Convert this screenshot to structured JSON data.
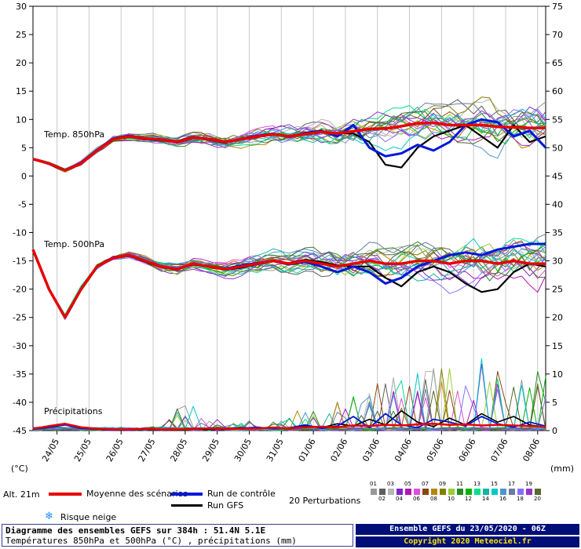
{
  "axis": {
    "left_label": "(°C)",
    "right_label": "(mm)",
    "left_ticks": [
      30,
      25,
      20,
      15,
      10,
      5,
      0,
      -5,
      -10,
      -15,
      -20,
      -25,
      -30,
      -35,
      -40,
      -45
    ],
    "right_ticks": [
      75,
      70,
      65,
      60,
      55,
      50,
      45,
      40,
      35,
      30,
      25,
      20,
      15,
      10,
      5,
      0
    ],
    "dates": [
      "24/05",
      "25/05",
      "26/05",
      "27/05",
      "28/05",
      "29/05",
      "30/05",
      "31/05",
      "01/06",
      "02/06",
      "03/06",
      "04/06",
      "05/06",
      "06/06",
      "07/06",
      "08/06"
    ]
  },
  "panel_labels": {
    "t850": "Temp. 850hPa",
    "t500": "Temp. 500hPa",
    "precip": "Précipitations"
  },
  "legend": {
    "alt": "Alt. 21m",
    "mean": "Moyenne des scénarios",
    "control": "Run de contrôle",
    "gfs": "Run GFS",
    "perturbations": "20 Perturbations",
    "snow_icon": "❄",
    "snow": "Risque neige"
  },
  "info_box": {
    "line1": "Diagramme des ensembles GEFS sur 384h : 51.4N 5.1E",
    "line2": "Températures 850hPa et 500hPa (°C) , précipitations (mm)"
  },
  "run_box": {
    "line1": "Ensemble GEFS du 23/05/2020 - 06Z",
    "line2": "Copyright 2020 Meteociel.fr"
  },
  "chart_data": {
    "type": "line",
    "x_step_hours": 12,
    "hours_total": 384,
    "ylim_c": [
      -45,
      30
    ],
    "ylim_mm": [
      0,
      75
    ],
    "grid": "vertical-daily",
    "legend_position": "below",
    "date_ticks_hours": [
      18,
      42,
      66,
      90,
      114,
      138,
      162,
      186,
      210,
      234,
      258,
      282,
      306,
      330,
      354,
      378
    ],
    "seed": 20200523,
    "colors": {
      "mean": "#e80000",
      "control": "#0018d8",
      "gfs": "#000000"
    },
    "members": [
      {
        "num": "01",
        "color": "#999999"
      },
      {
        "num": "02",
        "color": "#5e5e5e"
      },
      {
        "num": "03",
        "color": "#b5b5b5"
      },
      {
        "num": "04",
        "color": "#7d26cd"
      },
      {
        "num": "05",
        "color": "#b414b4"
      },
      {
        "num": "06",
        "color": "#dc50dc"
      },
      {
        "num": "07",
        "color": "#8b4513"
      },
      {
        "num": "08",
        "color": "#b8860b"
      },
      {
        "num": "09",
        "color": "#808000"
      },
      {
        "num": "10",
        "color": "#9acd32"
      },
      {
        "num": "11",
        "color": "#228b22"
      },
      {
        "num": "12",
        "color": "#00b400"
      },
      {
        "num": "13",
        "color": "#00e08c"
      },
      {
        "num": "14",
        "color": "#14b4a0"
      },
      {
        "num": "15",
        "color": "#00c8c8"
      },
      {
        "num": "16",
        "color": "#4f94cd"
      },
      {
        "num": "17",
        "color": "#6a7ba2"
      },
      {
        "num": "18",
        "color": "#8470ff"
      },
      {
        "num": "19",
        "color": "#9932cc"
      },
      {
        "num": "20",
        "color": "#556b2f"
      }
    ],
    "series": {
      "t850": {
        "mean": [
          3,
          2.2,
          1,
          2.2,
          4.5,
          6.5,
          7,
          6.6,
          6.4,
          6,
          6.8,
          6.5,
          6,
          6.5,
          7,
          7.4,
          7,
          7.4,
          7.8,
          7.5,
          7.9,
          8.3,
          8.4,
          8.8,
          9.3,
          9.4,
          9,
          9,
          9,
          8.7,
          8.6,
          8.5,
          8.5
        ],
        "control": [
          3,
          2.2,
          1,
          2.3,
          4.6,
          6.6,
          7.1,
          6.5,
          6.3,
          6.1,
          6.9,
          6.4,
          5.9,
          6.6,
          7.1,
          7.5,
          6.9,
          7.6,
          8,
          7,
          9,
          5,
          3.5,
          4,
          5.5,
          4.5,
          6,
          9,
          10,
          9.5,
          7,
          8,
          5
        ],
        "gfs": [
          3,
          2.1,
          0.9,
          2.2,
          4.4,
          6.4,
          7,
          6.7,
          6.5,
          5.9,
          6.7,
          6.6,
          6.1,
          6.4,
          6.9,
          7.3,
          7.1,
          7.3,
          7.7,
          7.6,
          7.5,
          6,
          2,
          1.5,
          5,
          7,
          8,
          9,
          7,
          5,
          9,
          6,
          7
        ],
        "spread": [
          0.3,
          0.4,
          0.4,
          0.5,
          0.5,
          0.6,
          0.7,
          0.8,
          0.9,
          1,
          1.1,
          1.2,
          1.3,
          1.5,
          1.6,
          1.8,
          2,
          2.2,
          2.4,
          2.6,
          2.8,
          3,
          3.2,
          3.4,
          3.6,
          3.8,
          3.9,
          4,
          4.2,
          4.3,
          4.4,
          4.5,
          4.6
        ]
      },
      "t500": {
        "mean": [
          -13,
          -20,
          -25,
          -20,
          -16,
          -14.5,
          -14,
          -15,
          -16,
          -16.5,
          -15.5,
          -16,
          -16.5,
          -16,
          -15.5,
          -15,
          -15.5,
          -15,
          -15.5,
          -16,
          -15.5,
          -15,
          -15.5,
          -15.5,
          -15,
          -15,
          -15.5,
          -15,
          -15,
          -15.5,
          -15,
          -15.5,
          -15.5
        ],
        "control": [
          -13,
          -20,
          -25,
          -20,
          -16,
          -14.4,
          -14,
          -15,
          -16,
          -16.4,
          -15.6,
          -16,
          -16.4,
          -15.8,
          -15.4,
          -15,
          -15.6,
          -15.2,
          -16,
          -17,
          -16,
          -17,
          -19,
          -18,
          -16,
          -15,
          -14,
          -13.5,
          -14,
          -13,
          -12.5,
          -12,
          -12
        ],
        "gfs": [
          -13,
          -20,
          -25,
          -20,
          -16,
          -14.6,
          -14.1,
          -15.2,
          -16.1,
          -16.6,
          -15.4,
          -16.1,
          -16.6,
          -16.2,
          -15.6,
          -15.1,
          -15.4,
          -14.8,
          -15.2,
          -15.8,
          -16,
          -16,
          -18,
          -19.5,
          -17,
          -16,
          -17,
          -19,
          -20.5,
          -20,
          -17,
          -15.5,
          -16
        ],
        "spread": [
          0.3,
          0.4,
          0.5,
          0.5,
          0.6,
          0.6,
          0.7,
          0.8,
          0.9,
          1,
          1.1,
          1.2,
          1.4,
          1.5,
          1.7,
          1.9,
          2.1,
          2.3,
          2.5,
          2.7,
          2.9,
          3.1,
          3.3,
          3.5,
          3.6,
          3.7,
          3.8,
          3.9,
          4,
          4.1,
          4.2,
          4.3,
          4.4
        ]
      },
      "precip": {
        "mean": [
          0.3,
          0.8,
          1.2,
          0.6,
          0.3,
          0.2,
          0.2,
          0.3,
          0.2,
          0.2,
          0.3,
          0.4,
          0.3,
          0.3,
          0.4,
          0.5,
          0.4,
          0.6,
          0.7,
          0.6,
          0.9,
          0.8,
          1,
          0.9,
          1.1,
          1.2,
          1,
          1.1,
          0.9,
          1,
          0.9,
          0.8,
          0.7
        ],
        "control": [
          0.2,
          0.6,
          1,
          0.4,
          0.2,
          0.1,
          0.1,
          0.2,
          0.1,
          0.2,
          0.4,
          0.3,
          0.2,
          0.4,
          0.6,
          0.3,
          0.5,
          1,
          0.4,
          0.8,
          2.5,
          0.5,
          3,
          1,
          0.5,
          2,
          1.5,
          0.8,
          2.5,
          1.2,
          0.6,
          1.5,
          0.8
        ],
        "gfs": [
          0.2,
          0.7,
          1.1,
          0.5,
          0.2,
          0.1,
          0.1,
          0.2,
          0.2,
          0.1,
          0.3,
          0.2,
          0.3,
          0.5,
          0.4,
          0.6,
          0.3,
          0.8,
          0.5,
          1.2,
          0.8,
          2,
          1,
          3.5,
          1.5,
          0.7,
          2.2,
          1,
          3,
          1.5,
          2.5,
          1,
          0.6
        ],
        "member_amp": [
          0.5,
          1,
          1.5,
          1,
          0.5,
          0.5,
          0.5,
          0.5,
          1,
          4,
          5,
          3,
          1,
          1.5,
          2,
          2.5,
          3,
          4,
          5,
          6,
          7,
          8,
          9,
          10,
          11,
          12,
          12,
          13,
          13,
          14,
          13,
          12,
          12
        ]
      }
    }
  }
}
